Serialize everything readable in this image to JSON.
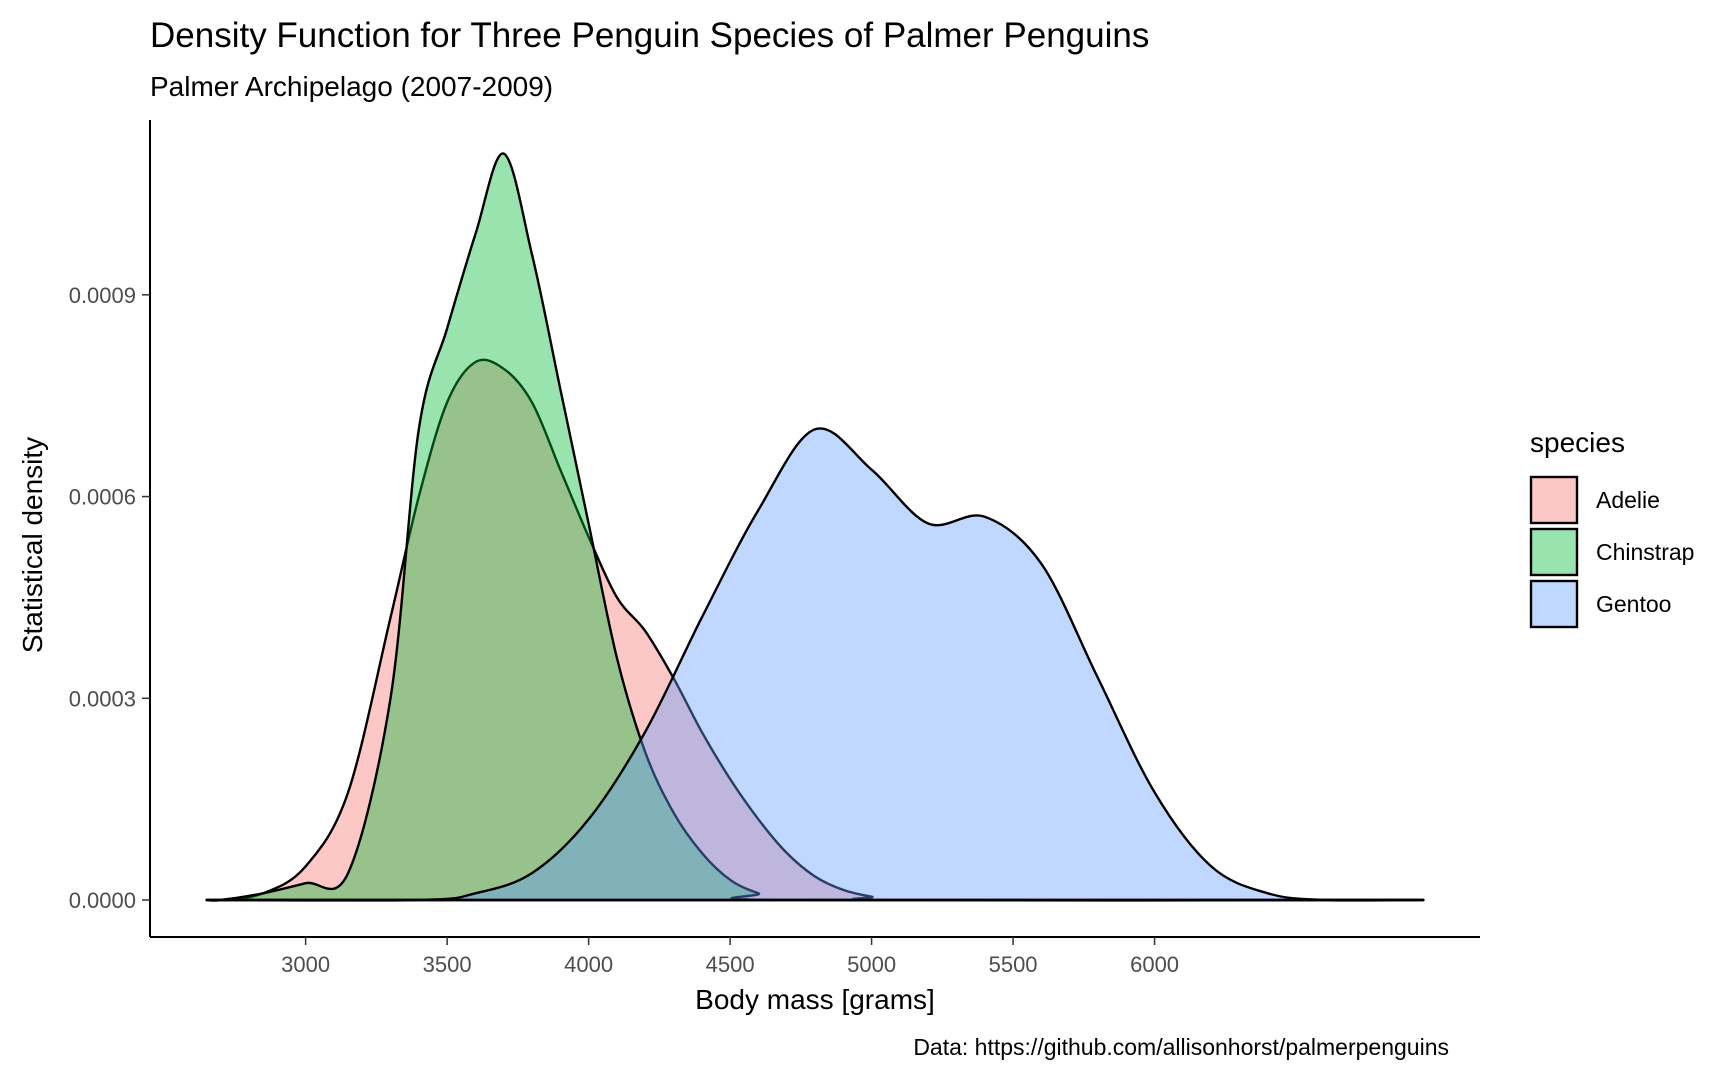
{
  "chart_data": {
    "type": "area",
    "title": "Density Function for Three Penguin Species of Palmer Penguins",
    "subtitle": "Palmer Archipelago (2007-2009)",
    "xlabel": "Body mass [grams]",
    "ylabel": "Statistical density",
    "caption": "Data: https://github.com/allisonhorst/palmerpenguins",
    "xlim": [
      2450,
      7150
    ],
    "ylim": [
      -5.5e-05,
      0.00116
    ],
    "x_ticks": [
      3000,
      3500,
      4000,
      4500,
      5000,
      5500,
      6000
    ],
    "x_tick_labels": [
      "3000",
      "3500",
      "4000",
      "4500",
      "5000",
      "5500",
      "6000"
    ],
    "y_ticks": [
      0,
      0.0003,
      0.0006,
      0.0009
    ],
    "y_tick_labels": [
      "0.0000",
      "0.0003",
      "0.0006",
      "0.0009"
    ],
    "grid": false,
    "legend": {
      "title": "species",
      "position": "right"
    },
    "fill_opacity": 0.4,
    "series": [
      {
        "name": "Adelie",
        "color": "#F8766D",
        "x": [
          2700,
          2850,
          3000,
          3150,
          3300,
          3400,
          3500,
          3600,
          3700,
          3800,
          3900,
          4000,
          4100,
          4200,
          4300,
          4400,
          4500,
          4600,
          4700,
          4800,
          4900,
          5000,
          5100
        ],
        "y": [
          0,
          1e-05,
          5e-05,
          0.00016,
          0.00042,
          0.0006,
          0.00074,
          0.0008,
          0.00079,
          0.00074,
          0.00064,
          0.00054,
          0.00045,
          0.0004,
          0.00033,
          0.00025,
          0.00018,
          0.00012,
          7e-05,
          3.5e-05,
          1.5e-05,
          5e-06,
          0
        ]
      },
      {
        "name": "Chinstrap",
        "color": "#00BA38",
        "x": [
          2700,
          2850,
          3000,
          3150,
          3300,
          3400,
          3500,
          3600,
          3700,
          3800,
          3900,
          4000,
          4100,
          4200,
          4300,
          4400,
          4500,
          4600,
          4700
        ],
        "y": [
          0,
          1e-05,
          2.5e-05,
          4e-05,
          0.0003,
          0.0007,
          0.00085,
          0.00099,
          0.00111,
          0.00096,
          0.00076,
          0.00056,
          0.00036,
          0.00022,
          0.00013,
          7e-05,
          3e-05,
          1e-05,
          0
        ]
      },
      {
        "name": "Gentoo",
        "color": "#619CFF",
        "x": [
          3400,
          3600,
          3800,
          4000,
          4200,
          4400,
          4600,
          4800,
          5000,
          5200,
          5400,
          5600,
          5800,
          6000,
          6200,
          6400,
          6600
        ],
        "y": [
          0,
          1e-05,
          4e-05,
          0.00012,
          0.00025,
          0.00042,
          0.00058,
          0.0007,
          0.00064,
          0.00056,
          0.00057,
          0.0005,
          0.00033,
          0.00016,
          5e-05,
          1e-05,
          0
        ]
      }
    ]
  }
}
